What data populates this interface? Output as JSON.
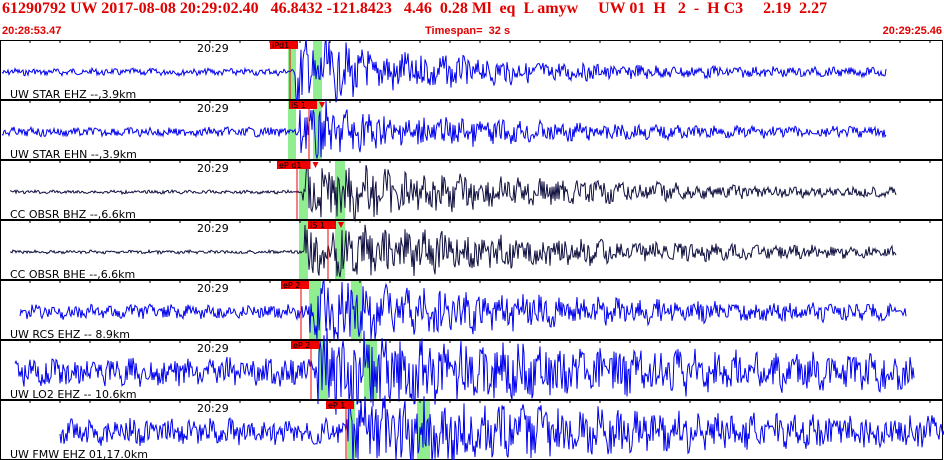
{
  "header": {
    "title": "61290792 UW 2017-08-08 20:29:02.40   46.8432 -121.8423   4.46  0.28 Ml  eq  L amyw     UW 01  H   2  -  H C3     2.19  2.27",
    "start_time": "20:28:53.47",
    "timespan": "Timespan=  32 s",
    "end_time": "20:29:25.46"
  },
  "colors": {
    "trace_blue": "#0000ee",
    "trace_dark": "#101040",
    "highlight": "#90ee90",
    "pick": "#ee0000",
    "title": "#e00000"
  },
  "panels": [
    {
      "label": "UW STAR EHZ --,3.9km",
      "time_label": "20:29",
      "pick": {
        "label": "iPd1"
      },
      "color": "#0000ee"
    },
    {
      "label": "UW STAR EHN --,3.9km",
      "time_label": "20:29",
      "pick": {
        "label": "iS 1"
      },
      "color": "#0000ee"
    },
    {
      "label": "CC OBSR BHZ --,6.6km",
      "time_label": "20:29",
      "pick": {
        "label": "eP d1"
      },
      "color": "#101040"
    },
    {
      "label": "CC OBSR BHE --,6.6km",
      "time_label": "20:29",
      "pick": {
        "label": "iS 1"
      },
      "color": "#101040"
    },
    {
      "label": "UW RCS EHZ -- 8.9km",
      "time_label": "20:29",
      "pick": {
        "label": "eP 2"
      },
      "color": "#0000ee"
    },
    {
      "label": "UW LO2 EHZ -- 10.6km",
      "time_label": "20:29",
      "pick": {
        "label": "eP 2"
      },
      "color": "#0000ee"
    },
    {
      "label": "UW FMW EHZ 01,17.0km",
      "time_label": "20:29",
      "pick": {
        "label": "eP 1"
      },
      "color": "#0000ee"
    }
  ]
}
